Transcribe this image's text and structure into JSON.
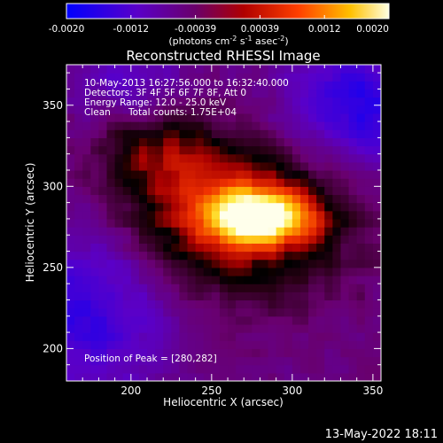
{
  "colorbar": {
    "ticks": [
      "-0.0020",
      "-0.0012",
      "-0.00039",
      "0.00039",
      "0.0012",
      "0.0020"
    ],
    "unit_main": "(photons cm",
    "unit_exp1": "-2",
    "unit_mid": " s",
    "unit_exp2": "-1",
    "unit_tail": " asec",
    "unit_exp3": "-2",
    "unit_close": ")"
  },
  "chart_data": {
    "type": "heatmap",
    "title": "Reconstructed RHESSI Image",
    "xlabel": "Heliocentric X (arcsec)",
    "ylabel": "Heliocentric Y (arcsec)",
    "xlim": [
      160,
      355
    ],
    "ylim": [
      180,
      375
    ],
    "x_ticks": [
      200,
      250,
      300,
      350
    ],
    "y_ticks": [
      200,
      250,
      300,
      350
    ],
    "colorbar_range": [
      -0.002,
      0.002
    ],
    "peak": [
      280,
      282
    ],
    "annotations": {
      "time": "10-May-2013 16:27:56.000 to 16:32:40.000",
      "detectors": "Detectors: 3F 4F 5F 6F 7F 8F, Att 0",
      "energy": "Energy Range: 12.0 - 25.0 keV",
      "method": "Clean",
      "counts": "Total counts: 1.75E+04",
      "peak_label": "Position of Peak = [280,282]"
    },
    "timestamp": "13-May-2022 18:11"
  }
}
